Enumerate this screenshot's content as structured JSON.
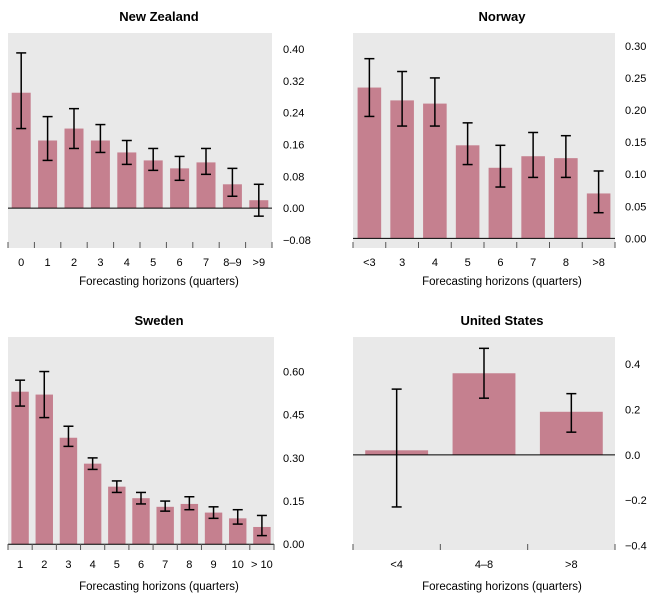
{
  "colors": {
    "panel_bg": "#e9e9e9",
    "bar": "#c5808f",
    "error_bar": "#000000",
    "zero_line": "#000000",
    "text": "#000000"
  },
  "chart_data": [
    {
      "type": "bar",
      "title": "New Zealand",
      "xlabel": "Forecasting horizons (quarters)",
      "ylabel": "",
      "ylim": [
        -0.1,
        0.44
      ],
      "yticks": [
        -0.08,
        0.0,
        0.08,
        0.16,
        0.24,
        0.32,
        0.4
      ],
      "ytick_labels": [
        "−0.08",
        "0.00",
        "0.08",
        "0.16",
        "0.24",
        "0.32",
        "0.40"
      ],
      "categories": [
        "0",
        "1",
        "2",
        "3",
        "4",
        "5",
        "6",
        "7",
        "8–9",
        ">9"
      ],
      "values": [
        0.29,
        0.17,
        0.2,
        0.17,
        0.14,
        0.12,
        0.1,
        0.115,
        0.06,
        0.02
      ],
      "err_low": [
        0.2,
        0.12,
        0.15,
        0.14,
        0.11,
        0.095,
        0.07,
        0.085,
        0.03,
        -0.02
      ],
      "err_high": [
        0.39,
        0.23,
        0.25,
        0.21,
        0.17,
        0.15,
        0.13,
        0.15,
        0.1,
        0.06
      ],
      "grid": false
    },
    {
      "type": "bar",
      "title": "Norway",
      "xlabel": "Forecasting horizons (quarters)",
      "ylabel": "",
      "ylim": [
        -0.015,
        0.32
      ],
      "yticks": [
        0.0,
        0.05,
        0.1,
        0.15,
        0.2,
        0.25,
        0.3
      ],
      "ytick_labels": [
        "0.00",
        "0.05",
        "0.10",
        "0.15",
        "0.20",
        "0.25",
        "0.30"
      ],
      "categories": [
        "<3",
        "3",
        "4",
        "5",
        "6",
        "7",
        "8",
        ">8"
      ],
      "values": [
        0.235,
        0.215,
        0.21,
        0.145,
        0.11,
        0.128,
        0.125,
        0.07
      ],
      "err_low": [
        0.19,
        0.175,
        0.175,
        0.115,
        0.08,
        0.095,
        0.095,
        0.04
      ],
      "err_high": [
        0.28,
        0.26,
        0.25,
        0.18,
        0.145,
        0.165,
        0.16,
        0.105
      ],
      "grid": false
    },
    {
      "type": "bar",
      "title": "Sweden",
      "xlabel": "Forecasting horizons (quarters)",
      "ylabel": "",
      "ylim": [
        -0.02,
        0.72
      ],
      "yticks": [
        0.0,
        0.15,
        0.3,
        0.45,
        0.6
      ],
      "ytick_labels": [
        "0.00",
        "0.15",
        "0.30",
        "0.45",
        "0.60"
      ],
      "categories": [
        "1",
        "2",
        "3",
        "4",
        "5",
        "6",
        "7",
        "8",
        "9",
        "10",
        "> 10"
      ],
      "values": [
        0.53,
        0.52,
        0.37,
        0.28,
        0.2,
        0.16,
        0.13,
        0.14,
        0.11,
        0.09,
        0.06
      ],
      "err_low": [
        0.48,
        0.44,
        0.34,
        0.26,
        0.18,
        0.14,
        0.115,
        0.12,
        0.09,
        0.07,
        0.03
      ],
      "err_high": [
        0.57,
        0.6,
        0.41,
        0.3,
        0.22,
        0.18,
        0.15,
        0.165,
        0.13,
        0.12,
        0.1
      ],
      "grid": false
    },
    {
      "type": "bar",
      "title": "United States",
      "xlabel": "Forecasting horizons (quarters)",
      "ylabel": "",
      "ylim": [
        -0.42,
        0.52
      ],
      "yticks": [
        -0.4,
        -0.2,
        0.0,
        0.2,
        0.4
      ],
      "ytick_labels": [
        "−0.4",
        "−0.2",
        "0.0",
        "0.2",
        "0.4"
      ],
      "categories": [
        "<4",
        "4–8",
        ">8"
      ],
      "values": [
        0.02,
        0.36,
        0.19
      ],
      "err_low": [
        -0.23,
        0.25,
        0.1
      ],
      "err_high": [
        0.29,
        0.47,
        0.27
      ],
      "grid": false
    }
  ]
}
